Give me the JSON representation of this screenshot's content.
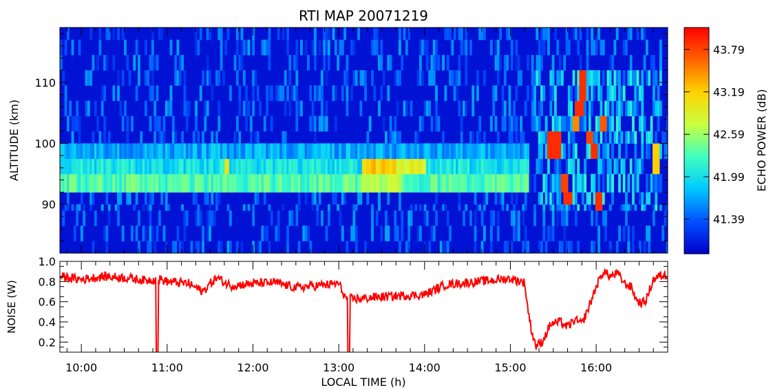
{
  "chart_data": [
    {
      "type": "heatmap",
      "title": "RTI MAP 20071219",
      "ylabel": "ALTITUDE (km)",
      "ylim": [
        82,
        119
      ],
      "yticks": [
        90,
        100,
        110
      ],
      "xlim": [
        "09:45",
        "16:50"
      ],
      "colorbar": {
        "label": "ECHO POWER (dB)",
        "range": [
          40.9,
          44.1
        ],
        "ticks": [
          "41.39",
          "41.99",
          "42.59",
          "43.19",
          "43.79"
        ],
        "colormap": [
          "#0000c8",
          "#0050ff",
          "#00c8ff",
          "#40ffc0",
          "#c8ff40",
          "#ffd200",
          "#ff6400",
          "#ff0000"
        ]
      },
      "background_value": 41.0,
      "altitude_bands": [
        {
          "altitude_range": [
            92,
            95
          ],
          "mean_echo_dB": 42.3
        },
        {
          "altitude_range": [
            95,
            97.5
          ],
          "mean_echo_dB": 42.0
        },
        {
          "altitude_range": [
            97.5,
            100
          ],
          "mean_echo_dB": 41.7
        }
      ],
      "enhanced_regions": [
        {
          "time_range": [
            "13:15",
            "13:40"
          ],
          "altitude_range": [
            95,
            97.5
          ],
          "echo_dB": 43.2
        },
        {
          "time_range": [
            "13:40",
            "14:00"
          ],
          "altitude_range": [
            95,
            97.5
          ],
          "echo_dB": 42.9
        },
        {
          "time_range": [
            "13:15",
            "13:45"
          ],
          "altitude_range": [
            92,
            95
          ],
          "echo_dB": 42.7
        },
        {
          "time_range": [
            "11:40",
            "11:43"
          ],
          "altitude_range": [
            95,
            97.5
          ],
          "echo_dB": 42.9
        }
      ],
      "strong_echoes": [
        {
          "time_range": [
            "15:25",
            "15:35"
          ],
          "altitude_range": [
            97.5,
            102
          ],
          "echo_dB": 43.9
        },
        {
          "time_range": [
            "15:30",
            "15:35"
          ],
          "altitude_range": [
            100,
            102
          ],
          "echo_dB": 43.6
        },
        {
          "time_range": [
            "15:35",
            "15:40"
          ],
          "altitude_range": [
            92,
            95
          ],
          "echo_dB": 43.8
        },
        {
          "time_range": [
            "15:37",
            "15:42"
          ],
          "altitude_range": [
            90,
            92.5
          ],
          "echo_dB": 43.9
        },
        {
          "time_range": [
            "15:45",
            "15:50"
          ],
          "altitude_range": [
            104,
            107
          ],
          "echo_dB": 43.9
        },
        {
          "time_range": [
            "15:48",
            "15:53"
          ],
          "altitude_range": [
            107,
            111
          ],
          "echo_dB": 43.9
        },
        {
          "time_range": [
            "15:42",
            "15:47"
          ],
          "altitude_range": [
            102,
            105
          ],
          "echo_dB": 43.5
        },
        {
          "time_range": [
            "15:52",
            "15:57"
          ],
          "altitude_range": [
            99,
            103
          ],
          "echo_dB": 43.8
        },
        {
          "time_range": [
            "15:55",
            "16:00"
          ],
          "altitude_range": [
            97.5,
            100
          ],
          "echo_dB": 43.9
        },
        {
          "time_range": [
            "16:02",
            "16:07"
          ],
          "altitude_range": [
            102,
            105
          ],
          "echo_dB": 43.7
        },
        {
          "time_range": [
            "15:58",
            "16:04"
          ],
          "altitude_range": [
            89,
            92
          ],
          "echo_dB": 43.9
        },
        {
          "time_range": [
            "16:38",
            "16:43"
          ],
          "altitude_range": [
            95,
            99
          ],
          "echo_dB": 43.2
        }
      ]
    },
    {
      "type": "line",
      "xlabel": "LOCAL TIME (h)",
      "ylabel": "NOISE (W)",
      "ylim": [
        0.1,
        1.0
      ],
      "yticks": [
        "0.2",
        "0.4",
        "0.6",
        "0.8",
        "1.0"
      ],
      "xlim": [
        "09:45",
        "16:50"
      ],
      "xticks": [
        "10:00",
        "11:00",
        "12:00",
        "13:00",
        "14:00",
        "15:00",
        "16:00"
      ],
      "color": "#ff0000",
      "series": [
        {
          "x": [
            "09:45",
            "10:00",
            "10:15",
            "10:30",
            "10:45",
            "10:53",
            "11:00",
            "11:15",
            "11:20",
            "11:25",
            "11:30",
            "11:35",
            "11:37",
            "11:40",
            "11:45",
            "12:00",
            "12:15",
            "12:30",
            "12:45",
            "13:00",
            "13:05",
            "13:15",
            "13:30",
            "13:45",
            "14:00",
            "14:15",
            "14:30",
            "14:45",
            "15:00",
            "15:10",
            "15:12",
            "15:15",
            "15:18",
            "15:22",
            "15:25",
            "15:28",
            "15:35",
            "15:40",
            "15:45",
            "15:50",
            "15:55",
            "16:00",
            "16:05",
            "16:10",
            "16:15",
            "16:20",
            "16:25",
            "16:28",
            "16:32",
            "16:35",
            "16:40",
            "16:45",
            "16:50"
          ],
          "y": [
            0.85,
            0.82,
            0.85,
            0.84,
            0.81,
            0.83,
            0.8,
            0.78,
            0.74,
            0.7,
            0.78,
            0.84,
            0.82,
            0.79,
            0.76,
            0.78,
            0.79,
            0.74,
            0.76,
            0.78,
            0.63,
            0.63,
            0.65,
            0.66,
            0.67,
            0.77,
            0.79,
            0.81,
            0.83,
            0.79,
            0.55,
            0.3,
            0.16,
            0.2,
            0.28,
            0.38,
            0.4,
            0.35,
            0.42,
            0.38,
            0.55,
            0.75,
            0.9,
            0.85,
            0.88,
            0.78,
            0.74,
            0.62,
            0.58,
            0.62,
            0.82,
            0.86,
            0.86
          ]
        }
      ],
      "dropouts": [
        "10:53",
        "13:07"
      ]
    }
  ]
}
